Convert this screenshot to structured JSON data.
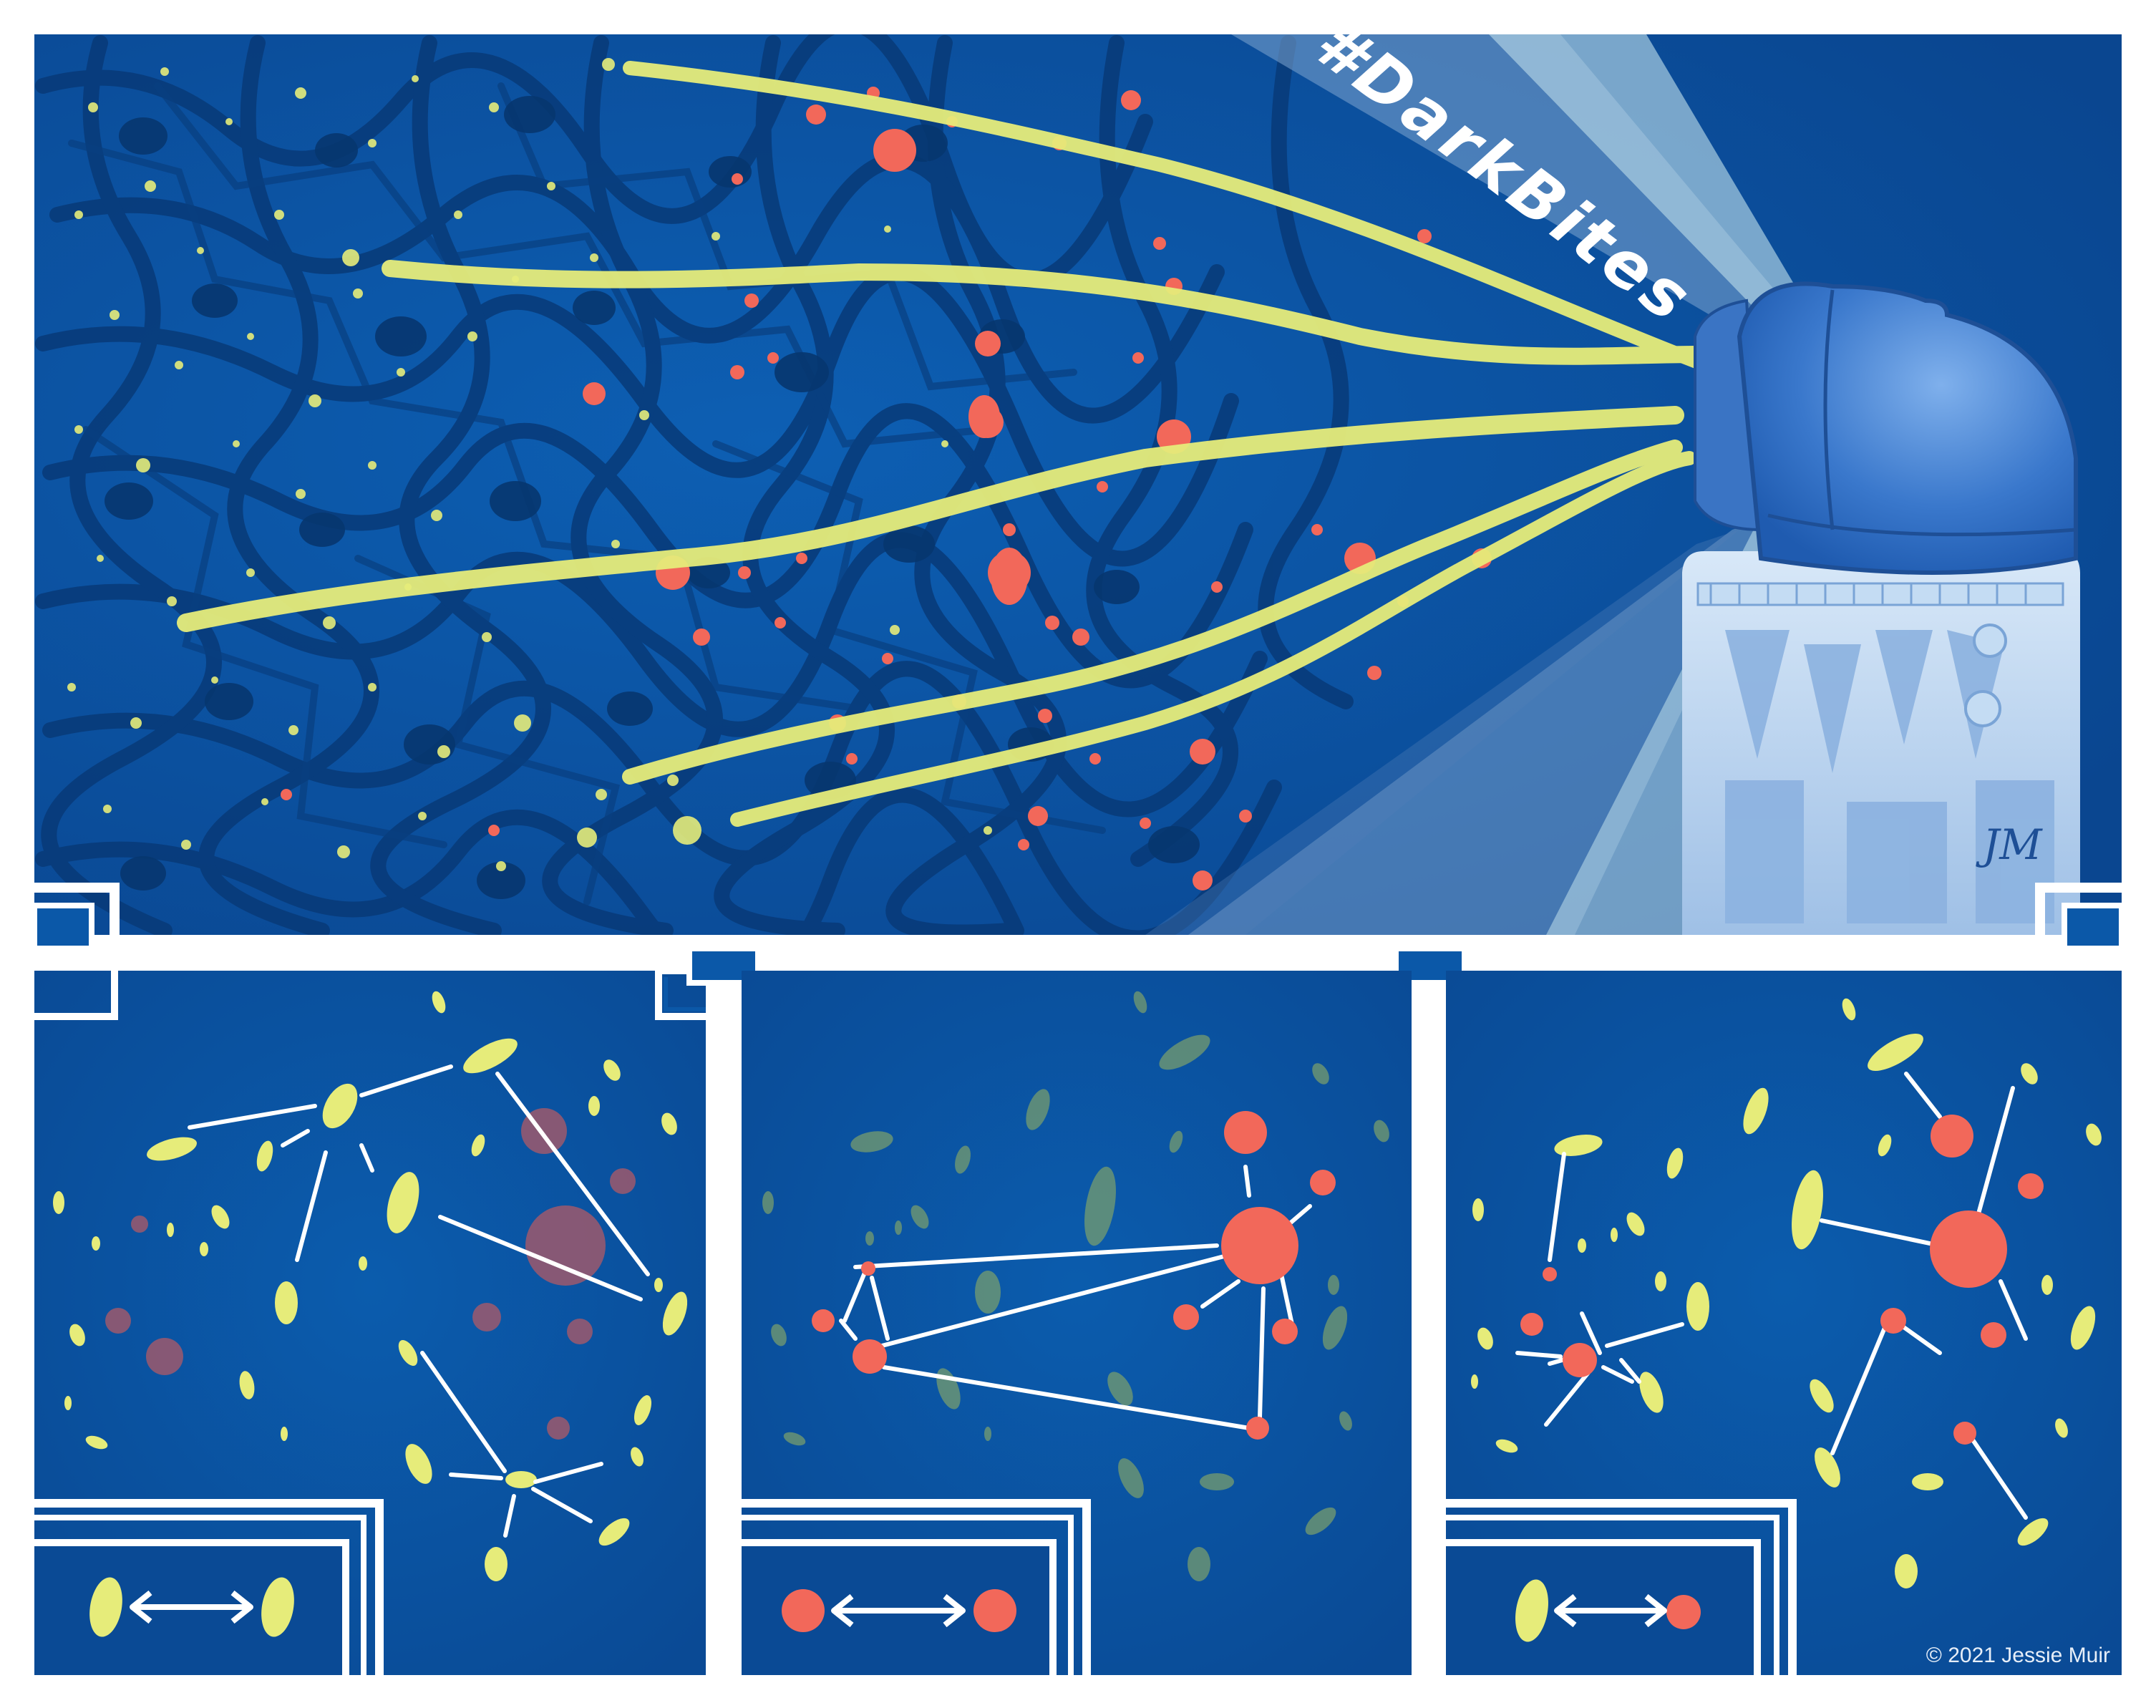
{
  "illustration": {
    "hashtag": "#DarkBites",
    "signature": "JM",
    "copyright": "© 2021 Jessie Muir"
  },
  "panels": [
    {
      "name": "galaxy-shapes-panel",
      "legend": "galaxy-to-galaxy"
    },
    {
      "name": "cluster-correlation-panel",
      "legend": "cluster-to-cluster"
    },
    {
      "name": "cross-correlation-panel",
      "legend": "galaxy-to-cluster"
    }
  ],
  "colors": {
    "background": "#0b58a8",
    "deep_blue": "#0a3f85",
    "web_dark": "#083a78",
    "galaxy_yellow": "#e6ec7a",
    "cluster_red": "#f2685a",
    "beam_light": "#b6d7e6",
    "dome_blue": "#3a7ad0",
    "building": "#a9c8ec",
    "frame_white": "#ffffff"
  }
}
